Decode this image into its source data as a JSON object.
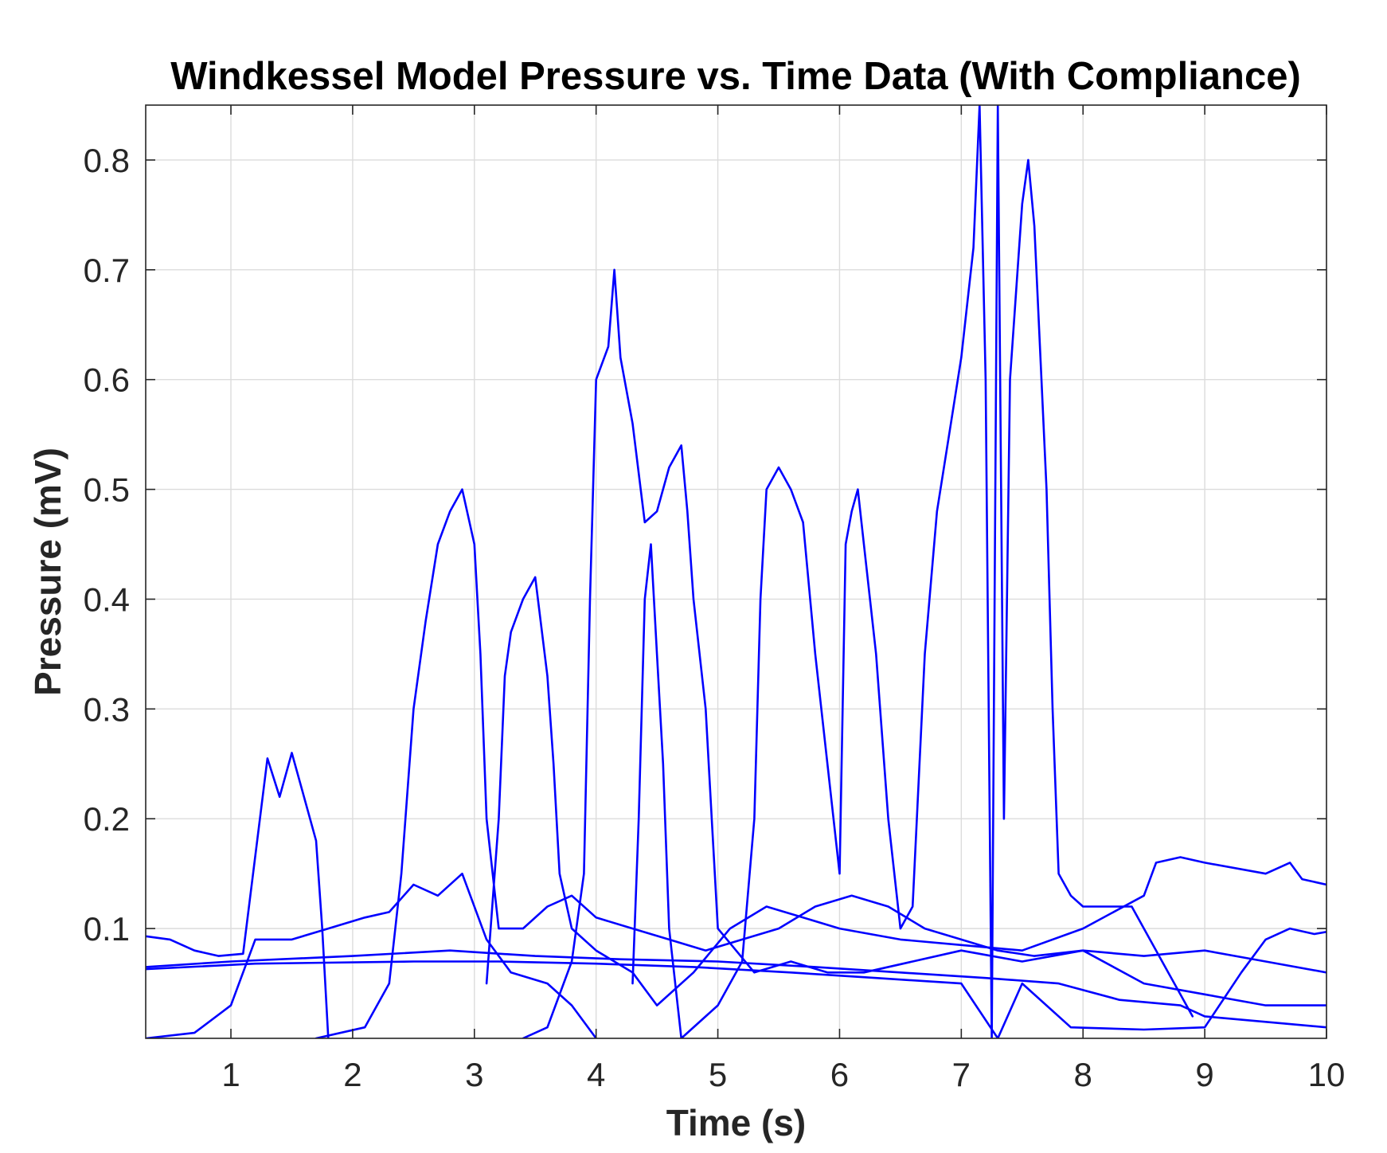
{
  "chart_data": {
    "type": "line",
    "title": "Windkessel Model Pressure vs. Time Data (With Compliance)",
    "xlabel": "Time (s)",
    "ylabel": "Pressure (mV)",
    "xlim": [
      0.3,
      10
    ],
    "ylim": [
      0.0,
      0.85
    ],
    "xticks": [
      1,
      2,
      3,
      4,
      5,
      6,
      7,
      8,
      9,
      10
    ],
    "yticks": [
      0.1,
      0.2,
      0.3,
      0.4,
      0.5,
      0.6,
      0.7,
      0.8
    ],
    "xtick_labels": [
      "1",
      "2",
      "3",
      "4",
      "5",
      "6",
      "7",
      "8",
      "9",
      "10"
    ],
    "ytick_labels": [
      "0.1",
      "0.2",
      "0.3",
      "0.4",
      "0.5",
      "0.6",
      "0.7",
      "0.8"
    ],
    "grid": true,
    "legend": false,
    "line_color": "#0000ff",
    "series": [
      {
        "values": [
          [
            0.3,
            0.093
          ],
          [
            0.5,
            0.09
          ],
          [
            0.7,
            0.08
          ],
          [
            0.9,
            0.075
          ],
          [
            1.1,
            0.077
          ],
          [
            1.3,
            0.255
          ],
          [
            1.4,
            0.22
          ],
          [
            1.5,
            0.26
          ],
          [
            1.6,
            0.22
          ],
          [
            1.7,
            0.18
          ],
          [
            1.75,
            0.1
          ],
          [
            1.8,
            0.0
          ]
        ]
      },
      {
        "values": [
          [
            0.3,
            0.0
          ],
          [
            0.7,
            0.005
          ],
          [
            1.0,
            0.03
          ],
          [
            1.2,
            0.09
          ],
          [
            1.5,
            0.09
          ],
          [
            1.8,
            0.1
          ],
          [
            2.1,
            0.11
          ],
          [
            2.3,
            0.115
          ],
          [
            2.5,
            0.14
          ],
          [
            2.7,
            0.13
          ],
          [
            2.9,
            0.15
          ],
          [
            3.1,
            0.09
          ],
          [
            3.3,
            0.06
          ],
          [
            3.6,
            0.05
          ],
          [
            3.8,
            0.03
          ],
          [
            4.0,
            0.0
          ]
        ]
      },
      {
        "values": [
          [
            1.7,
            0.0
          ],
          [
            2.1,
            0.01
          ],
          [
            2.3,
            0.05
          ],
          [
            2.4,
            0.15
          ],
          [
            2.5,
            0.3
          ],
          [
            2.6,
            0.38
          ],
          [
            2.7,
            0.45
          ],
          [
            2.8,
            0.48
          ],
          [
            2.9,
            0.5
          ],
          [
            3.0,
            0.45
          ],
          [
            3.05,
            0.35
          ],
          [
            3.1,
            0.2
          ],
          [
            3.2,
            0.1
          ],
          [
            3.4,
            0.1
          ],
          [
            3.6,
            0.12
          ],
          [
            3.8,
            0.13
          ],
          [
            4.0,
            0.11
          ],
          [
            4.3,
            0.1
          ],
          [
            4.6,
            0.09
          ],
          [
            4.9,
            0.08
          ],
          [
            5.2,
            0.09
          ],
          [
            5.5,
            0.1
          ],
          [
            5.8,
            0.12
          ],
          [
            6.1,
            0.13
          ],
          [
            6.4,
            0.12
          ],
          [
            6.7,
            0.1
          ],
          [
            7.0,
            0.09
          ],
          [
            7.3,
            0.08
          ],
          [
            7.6,
            0.075
          ],
          [
            8.0,
            0.08
          ],
          [
            8.5,
            0.075
          ],
          [
            9.0,
            0.08
          ],
          [
            9.5,
            0.07
          ],
          [
            10.0,
            0.06
          ]
        ]
      },
      {
        "values": [
          [
            3.1,
            0.05
          ],
          [
            3.2,
            0.2
          ],
          [
            3.25,
            0.33
          ],
          [
            3.3,
            0.37
          ],
          [
            3.4,
            0.4
          ],
          [
            3.5,
            0.42
          ],
          [
            3.6,
            0.33
          ],
          [
            3.65,
            0.25
          ],
          [
            3.7,
            0.15
          ],
          [
            3.8,
            0.1
          ],
          [
            4.0,
            0.08
          ],
          [
            4.3,
            0.06
          ],
          [
            4.5,
            0.03
          ],
          [
            4.8,
            0.06
          ],
          [
            5.1,
            0.1
          ],
          [
            5.4,
            0.12
          ],
          [
            5.7,
            0.11
          ],
          [
            6.0,
            0.1
          ],
          [
            6.5,
            0.09
          ],
          [
            7.0,
            0.085
          ],
          [
            7.5,
            0.08
          ],
          [
            8.0,
            0.1
          ],
          [
            8.5,
            0.13
          ],
          [
            8.6,
            0.16
          ],
          [
            8.8,
            0.165
          ],
          [
            9.0,
            0.16
          ],
          [
            9.5,
            0.15
          ],
          [
            9.7,
            0.16
          ],
          [
            9.8,
            0.145
          ],
          [
            10.0,
            0.14
          ]
        ]
      },
      {
        "values": [
          [
            3.4,
            0.0
          ],
          [
            3.6,
            0.01
          ],
          [
            3.8,
            0.07
          ],
          [
            3.9,
            0.15
          ],
          [
            3.95,
            0.4
          ],
          [
            4.0,
            0.6
          ],
          [
            4.1,
            0.63
          ],
          [
            4.15,
            0.7
          ],
          [
            4.2,
            0.62
          ],
          [
            4.3,
            0.56
          ],
          [
            4.4,
            0.47
          ],
          [
            4.5,
            0.48
          ],
          [
            4.6,
            0.52
          ],
          [
            4.7,
            0.54
          ],
          [
            4.75,
            0.48
          ],
          [
            4.8,
            0.4
          ],
          [
            4.9,
            0.3
          ],
          [
            4.95,
            0.2
          ],
          [
            5.0,
            0.1
          ],
          [
            5.3,
            0.06
          ],
          [
            5.6,
            0.07
          ],
          [
            5.9,
            0.06
          ],
          [
            6.2,
            0.06
          ],
          [
            6.6,
            0.07
          ],
          [
            7.0,
            0.08
          ],
          [
            7.5,
            0.07
          ],
          [
            8.0,
            0.08
          ],
          [
            8.5,
            0.05
          ],
          [
            9.0,
            0.04
          ],
          [
            9.5,
            0.03
          ],
          [
            10.0,
            0.03
          ]
        ]
      },
      {
        "values": [
          [
            4.3,
            0.05
          ],
          [
            4.35,
            0.2
          ],
          [
            4.4,
            0.4
          ],
          [
            4.45,
            0.45
          ],
          [
            4.5,
            0.35
          ],
          [
            4.55,
            0.25
          ],
          [
            4.6,
            0.1
          ],
          [
            4.7,
            0.0
          ],
          [
            5.0,
            0.03
          ],
          [
            5.2,
            0.07
          ],
          [
            5.3,
            0.2
          ],
          [
            5.35,
            0.4
          ],
          [
            5.4,
            0.5
          ],
          [
            5.5,
            0.52
          ],
          [
            5.6,
            0.5
          ],
          [
            5.7,
            0.47
          ],
          [
            5.8,
            0.35
          ],
          [
            5.9,
            0.25
          ],
          [
            6.0,
            0.15
          ],
          [
            6.05,
            0.45
          ],
          [
            6.1,
            0.48
          ],
          [
            6.15,
            0.5
          ],
          [
            6.2,
            0.45
          ],
          [
            6.3,
            0.35
          ],
          [
            6.4,
            0.2
          ],
          [
            6.5,
            0.1
          ],
          [
            6.6,
            0.12
          ],
          [
            6.7,
            0.35
          ],
          [
            6.8,
            0.48
          ],
          [
            6.9,
            0.55
          ],
          [
            7.0,
            0.62
          ],
          [
            7.1,
            0.72
          ],
          [
            7.15,
            0.85
          ],
          [
            7.2,
            0.6
          ],
          [
            7.25,
            0.0
          ],
          [
            7.3,
            0.85
          ],
          [
            7.35,
            0.2
          ],
          [
            7.4,
            0.6
          ],
          [
            7.5,
            0.76
          ],
          [
            7.55,
            0.8
          ],
          [
            7.6,
            0.74
          ],
          [
            7.7,
            0.5
          ],
          [
            7.75,
            0.3
          ],
          [
            7.8,
            0.15
          ],
          [
            7.9,
            0.13
          ],
          [
            8.0,
            0.12
          ],
          [
            8.2,
            0.12
          ],
          [
            8.4,
            0.12
          ],
          [
            8.5,
            0.1
          ],
          [
            8.6,
            0.08
          ],
          [
            8.7,
            0.06
          ],
          [
            8.8,
            0.04
          ],
          [
            8.9,
            0.02
          ]
        ]
      },
      {
        "values": [
          [
            0.3,
            0.065
          ],
          [
            1.0,
            0.07
          ],
          [
            2.0,
            0.075
          ],
          [
            2.8,
            0.08
          ],
          [
            3.5,
            0.075
          ],
          [
            4.2,
            0.072
          ],
          [
            5.0,
            0.07
          ],
          [
            5.8,
            0.065
          ],
          [
            6.5,
            0.06
          ],
          [
            7.2,
            0.055
          ],
          [
            7.8,
            0.05
          ],
          [
            8.3,
            0.035
          ],
          [
            8.8,
            0.03
          ],
          [
            9.0,
            0.02
          ],
          [
            9.5,
            0.015
          ],
          [
            10.0,
            0.01
          ]
        ]
      },
      {
        "values": [
          [
            0.3,
            0.063
          ],
          [
            1.2,
            0.068
          ],
          [
            2.5,
            0.07
          ],
          [
            3.2,
            0.07
          ],
          [
            4.0,
            0.068
          ],
          [
            4.8,
            0.065
          ],
          [
            5.6,
            0.06
          ],
          [
            6.3,
            0.055
          ],
          [
            7.0,
            0.05
          ],
          [
            7.3,
            0.0
          ],
          [
            7.5,
            0.05
          ],
          [
            7.9,
            0.01
          ],
          [
            8.5,
            0.008
          ],
          [
            9.0,
            0.01
          ],
          [
            9.3,
            0.06
          ],
          [
            9.5,
            0.09
          ],
          [
            9.7,
            0.1
          ],
          [
            9.9,
            0.095
          ],
          [
            10.0,
            0.097
          ]
        ]
      }
    ]
  }
}
